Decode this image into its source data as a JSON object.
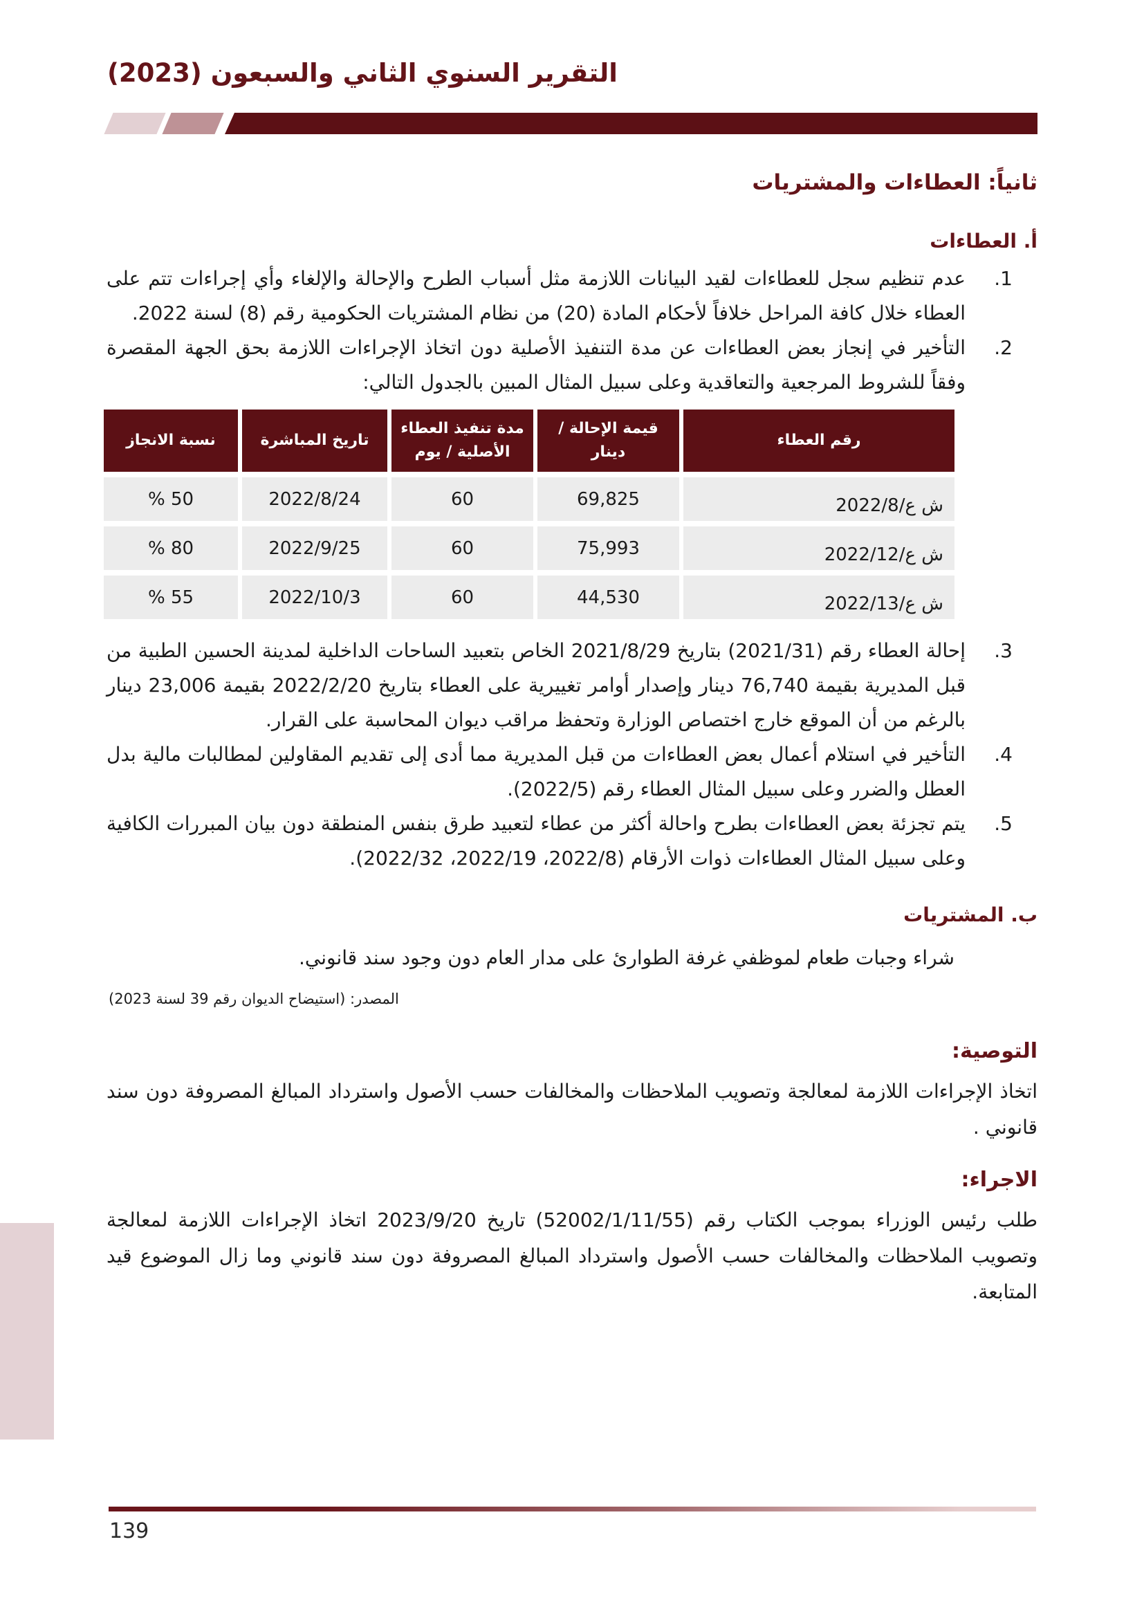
{
  "header": {
    "title": "التقرير السنوي الثاني والسبعون (2023)"
  },
  "section": {
    "title": "ثانياً: العطاءات والمشتريات",
    "tenders": {
      "title": "أ. العطاءات",
      "items_before_table": [
        {
          "num": "1.",
          "text": "عدم تنظيم سجل للعطاءات لقيد البيانات اللازمة مثل أسباب الطرح والإحالة والإلغاء وأي إجراءات تتم على العطاء خلال كافة المراحل خلافاً لأحكام المادة (20) من نظام المشتريات الحكومية رقم (8) لسنة 2022."
        },
        {
          "num": "2.",
          "text": "التأخير في إنجاز بعض العطاءات عن مدة التنفيذ الأصلية دون اتخاذ الإجراءات اللازمة بحق الجهة المقصرة وفقاً للشروط المرجعية والتعاقدية وعلى سبيل المثال المبين بالجدول التالي:"
        }
      ],
      "items_after_table": [
        {
          "num": "3.",
          "text": "إحالة العطاء رقم (2021/31) بتاريخ 2021/8/29 الخاص بتعبيد الساحات الداخلية لمدينة الحسين الطبية من قبل المديرية بقيمة 76,740 دينار وإصدار أوامر تغييرية على العطاء بتاريخ 2022/2/20 بقيمة 23,006 دينار بالرغم من أن الموقع خارج اختصاص الوزارة وتحفظ مراقب ديوان المحاسبة على القرار."
        },
        {
          "num": "4.",
          "text": "التأخير في استلام أعمال بعض العطاءات من قبل المديرية مما أدى إلى تقديم المقاولين لمطالبات مالية بدل العطل والضرر وعلى سبيل المثال العطاء رقم (2022/5)."
        },
        {
          "num": "5.",
          "text": "يتم تجزئة بعض العطاءات بطرح واحالة أكثر من عطاء لتعبيد طرق بنفس المنطقة دون بيان المبررات الكافية وعلى سبيل المثال العطاءات ذوات الأرقام (2022/8، 2022/19، 2022/32)."
        }
      ]
    },
    "purchases": {
      "title": "ب. المشتريات",
      "body": "شراء وجبات طعام لموظفي غرفة الطوارئ على مدار العام دون وجود سند قانوني.",
      "source": "المصدر: (استيضاح الديوان رقم 39 لسنة 2023)"
    },
    "recommendation": {
      "title": "التوصية:",
      "body": "اتخاذ الإجراءات اللازمة لمعالجة وتصويب الملاحظات والمخالفات حسب الأصول واسترداد المبالغ المصروفة دون سند قانوني ."
    },
    "action": {
      "title": "الاجراء:",
      "body": "طلب رئيس الوزراء بموجب الكتاب رقم (52002/1/11/55) تاريخ 2023/9/20 اتخاذ الإجراءات اللازمة لمعالجة وتصويب الملاحظات والمخالفات حسب الأصول واسترداد المبالغ المصروفة دون سند قانوني  وما زال الموضوع قيد المتابعة."
    }
  },
  "table": {
    "headers": [
      "رقم العطاء",
      "قيمة الإحالة / دينار",
      "مدة تنفيذ العطاء الأصلية / يوم",
      "تاريخ المباشرة",
      "نسبة الانجاز"
    ],
    "rows": [
      [
        "ش ع/2022/8",
        "69,825",
        "60",
        "2022/8/24",
        "% 50"
      ],
      [
        "ش ع/2022/12",
        "75,993",
        "60",
        "2022/9/25",
        "% 80"
      ],
      [
        "ش ع/2022/13",
        "44,530",
        "60",
        "2022/10/3",
        "% 55"
      ]
    ]
  },
  "footer": {
    "page_number": "139"
  },
  "colors": {
    "maroon": "#5C1015",
    "heading_maroon": "#641419",
    "light_pink": "#E3D0D3",
    "mauve": "#BE9296",
    "row_gray": "#ECECEC",
    "sidebar_pink": "#E4D2D5",
    "line_dark": "#6A151B",
    "line_light": "#E7CECE"
  }
}
